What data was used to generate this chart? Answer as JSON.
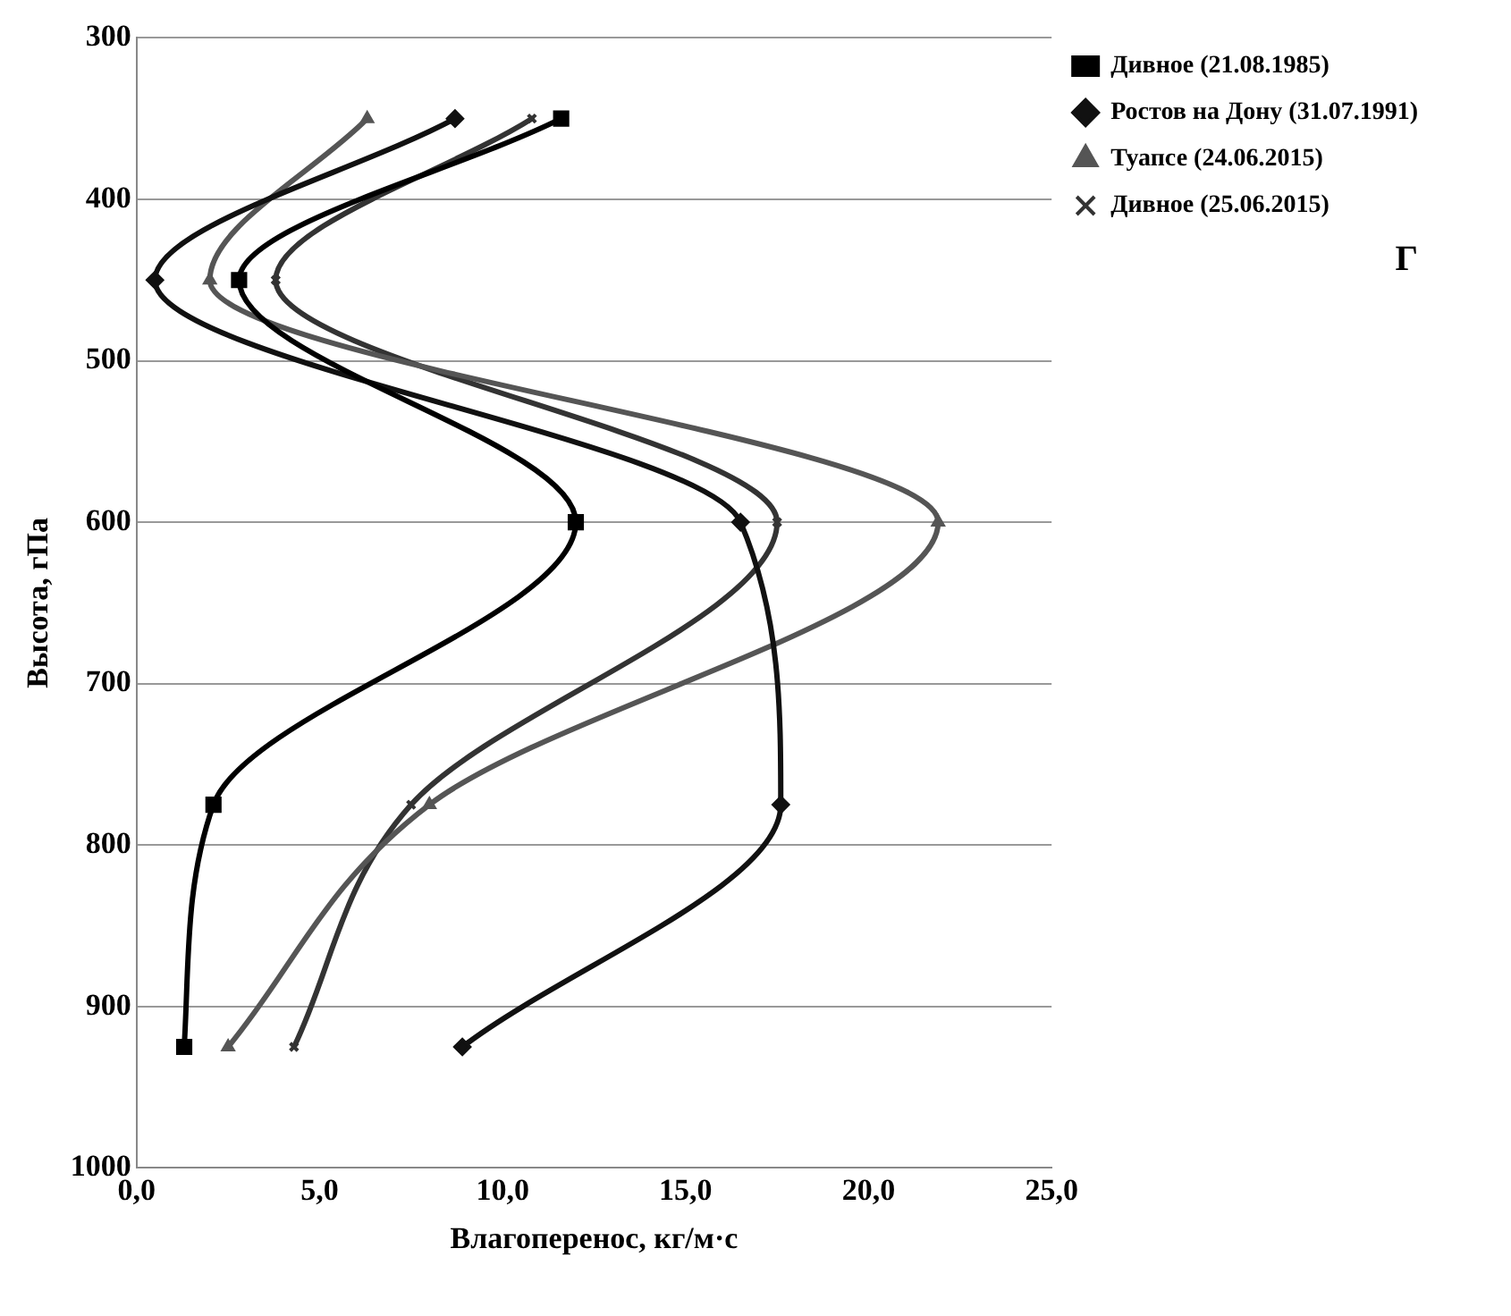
{
  "chart_data": {
    "type": "line",
    "xlabel": "Влагоперенос, кг/м·с",
    "ylabel": "Высота, гПа",
    "annotations": [
      "Г"
    ],
    "xlim": [
      0,
      25
    ],
    "xticks": [
      {
        "value": 0,
        "label": "0,0"
      },
      {
        "value": 5,
        "label": "5,0"
      },
      {
        "value": 10,
        "label": "10,0"
      },
      {
        "value": 15,
        "label": "15,0"
      },
      {
        "value": 20,
        "label": "20,0"
      },
      {
        "value": 25,
        "label": "25,0"
      }
    ],
    "ylim": [
      1000,
      300
    ],
    "yticks": [
      300,
      400,
      500,
      600,
      700,
      800,
      900,
      1000
    ],
    "grid": "y",
    "legend": "top right",
    "series": [
      {
        "name": "Дивное (21.08.1985)",
        "color": "#000000",
        "marker": "square",
        "x": [
          11.6,
          2.8,
          12.0,
          2.1,
          1.3
        ],
        "values": [
          350,
          450,
          600,
          775,
          925
        ]
      },
      {
        "name": "Ростов на Дону (31.07.1991)",
        "color": "#111111",
        "marker": "diamond",
        "x": [
          8.7,
          0.5,
          16.5,
          17.6,
          8.9
        ],
        "values": [
          350,
          450,
          600,
          775,
          925
        ]
      },
      {
        "name": "Туапсе (24.06.2015)",
        "color": "#555555",
        "marker": "triangle",
        "x": [
          6.3,
          2.0,
          21.9,
          8.0,
          2.5
        ],
        "values": [
          350,
          450,
          600,
          775,
          925
        ]
      },
      {
        "name": "Дивное (25.06.2015)",
        "color": "#333333",
        "marker": "cross",
        "x": [
          10.8,
          3.8,
          17.5,
          7.5,
          4.3
        ],
        "values": [
          350,
          450,
          600,
          775,
          925
        ]
      }
    ]
  }
}
